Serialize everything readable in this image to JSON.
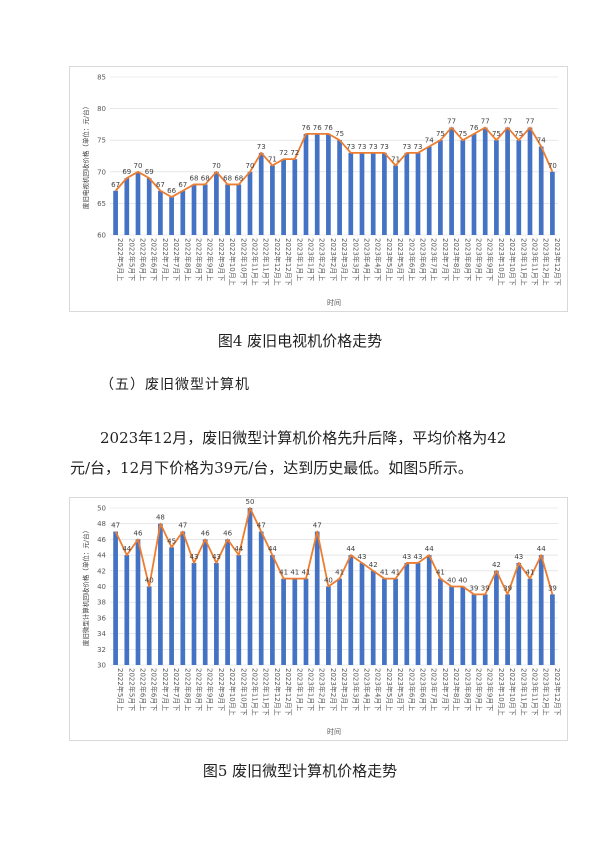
{
  "captions": {
    "fig4": "图4  废旧电视机价格走势",
    "fig5": "图5  废旧微型计算机价格走势"
  },
  "section_heading": "（五）废旧微型计算机",
  "paragraph": {
    "line1": "2023年12月，废旧微型计算机价格先升后降，平均价格为42",
    "line2": "元/台，12月下价格为39元/台，达到历史最低。如图5所示。"
  },
  "colors": {
    "bar": "#4472C4",
    "line": "#ED7D31",
    "grid": "#d9d9d9"
  },
  "chart_data": [
    {
      "type": "bar",
      "ylabel": "废旧电视机回收价格（单位：元/台）",
      "xlabel": "时间",
      "ylim": [
        60,
        85
      ],
      "yticks": [
        60,
        65,
        70,
        75,
        80,
        85
      ],
      "grid": true,
      "legend": "none",
      "categories": [
        "2022年5月上",
        "2022年5月下",
        "2022年6月上",
        "2022年6月下",
        "2022年7月上",
        "2022年7月下",
        "2022年8月上",
        "2022年8月下",
        "2022年9月上",
        "2022年9月下",
        "2022年10月上",
        "2022年10月下",
        "2022年11月上",
        "2022年11月下",
        "2022年12月上",
        "2022年12月下",
        "2023年1月上",
        "2023年1月下",
        "2023年2月上",
        "2023年2月下",
        "2023年3月上",
        "2023年3月下",
        "2023年4月上",
        "2023年4月下",
        "2023年5月上",
        "2023年5月下",
        "2023年6月上",
        "2023年6月下",
        "2023年7月上",
        "2023年7月下",
        "2023年8月上",
        "2023年8月下",
        "2023年9月上",
        "2023年9月下",
        "2023年10月上",
        "2023年10月下",
        "2023年11月上",
        "2023年11月下",
        "2023年12月上",
        "2023年12月下"
      ],
      "tick_labels": [
        "2022年5月上",
        "2022年5月下",
        "2022年6月上",
        "2022年6月下",
        "2022年7月上",
        "2022年7月下",
        "2022年8月上",
        "2022年8月下",
        "2022年9月上",
        "2022年9月下",
        "2022年10月上",
        "2022年10月下",
        "2022年11月上",
        "2022年11月下",
        "2022年12月上",
        "2022年12月下",
        "2023年1月上",
        "2023年1月下",
        "2023年2月上",
        "2023年2月下",
        "2023年3月上",
        "2023年3月下",
        "2023年4月上",
        "2023年4月下",
        "2023年5月上",
        "2023年5月下",
        "2023年6月上",
        "2023年6月下",
        "2023年7月上",
        "2023年7月下",
        "2023年8月上",
        "2023年8月下",
        "2023年9月上",
        "2023年9月下",
        "2023年10月上",
        "2023年10月下",
        "2023年11月上",
        "2023年11月下",
        "2023年12月上",
        "2023年12月下"
      ],
      "values": [
        67,
        69,
        70,
        69,
        67,
        66,
        67,
        68,
        68,
        70,
        68,
        68,
        70,
        73,
        71,
        72,
        72,
        76,
        76,
        76,
        75,
        73,
        73,
        73,
        73,
        71,
        73,
        73,
        74,
        75,
        77,
        75,
        76,
        77,
        75,
        77,
        75,
        77,
        74,
        70
      ],
      "labels": [
        "67",
        "69",
        "70",
        "69",
        "67",
        "66",
        "67",
        "68",
        "68",
        "70",
        "68",
        "68",
        "70",
        "73",
        "71",
        "72",
        "72",
        "76",
        "76",
        "76",
        "75",
        "73",
        "73",
        "73",
        "73",
        "71",
        "73",
        "73",
        "74",
        "75",
        "77",
        "75",
        "76",
        "77",
        "75",
        "77",
        "75",
        "77",
        "74",
        "70"
      ]
    },
    {
      "type": "bar",
      "ylabel": "废旧微型计算机回收价格（单位：元/台）",
      "xlabel": "时间",
      "ylim": [
        30,
        50
      ],
      "yticks": [
        30,
        32,
        34,
        36,
        38,
        40,
        42,
        44,
        46,
        48,
        50
      ],
      "grid": true,
      "legend": "none",
      "categories": [
        "2022年5月上",
        "2022年5月下",
        "2022年6月上",
        "2022年6月下",
        "2022年7月上",
        "2022年7月下",
        "2022年8月上",
        "2022年8月下",
        "2022年9月上",
        "2022年9月下",
        "2022年10月上",
        "2022年10月下",
        "2022年11月上",
        "2022年11月下",
        "2022年12月上",
        "2022年12月下",
        "2023年1月上",
        "2023年1月下",
        "2023年2月上",
        "2023年2月下",
        "2023年3月上",
        "2023年3月下",
        "2023年4月上",
        "2023年4月下",
        "2023年5月上",
        "2023年5月下",
        "2023年6月上",
        "2023年6月下",
        "2023年7月上",
        "2023年7月下",
        "2023年8月上",
        "2023年8月下",
        "2023年9月上",
        "2023年9月下",
        "2023年10月上",
        "2023年10月下",
        "2023年11月上",
        "2023年11月下",
        "2023年12月上",
        "2023年12月下"
      ],
      "tick_labels": [
        "2022年5月上",
        "2022年5月下",
        "2022年6月上",
        "2022年6月下",
        "2022年7月上",
        "2022年7月下",
        "2022年8月上",
        "2022年8月下",
        "2022年9月上",
        "2022年9月下",
        "2022年10月上",
        "2022年10月下",
        "2022年11月上",
        "2022年11月下",
        "2022年12月上",
        "2022年12月下",
        "2023年1月上",
        "2023年1月下",
        "2023年2月上",
        "2023年2月下",
        "2023年3月上",
        "2023年3月下",
        "2023年4月上",
        "2023年4月下",
        "2023年5月上",
        "2023年5月下",
        "2023年6月上",
        "2023年6月下",
        "2023年7月上",
        "2023年7月下",
        "2023年8月上",
        "2023年8月下",
        "2023年9月上",
        "2023年9月下",
        "2023年10月上",
        "2023年10月下",
        "2023年11月上",
        "2023年11月下",
        "2023年12月上",
        "2023年12月下"
      ],
      "values": [
        47,
        44,
        46,
        40,
        48,
        45,
        47,
        43,
        46,
        43,
        46,
        44,
        50,
        47,
        44,
        41,
        41,
        41,
        47,
        40,
        41,
        44,
        43,
        42,
        41,
        41,
        43,
        43,
        44,
        41,
        40,
        40,
        39,
        39,
        42,
        39,
        43,
        41,
        44,
        39
      ],
      "labels": [
        "47",
        "44",
        "46",
        "40",
        "48",
        "45",
        "47",
        "43",
        "46",
        "43",
        "46",
        "44",
        "50",
        "47",
        "44",
        "41",
        "41",
        "41",
        "47",
        "40",
        "41",
        "44",
        "43",
        "42",
        "41",
        "41",
        "43",
        "43",
        "44",
        "41",
        "40",
        "40",
        "39",
        "39",
        "42",
        "39",
        "43",
        "41",
        "44",
        "39"
      ]
    }
  ]
}
